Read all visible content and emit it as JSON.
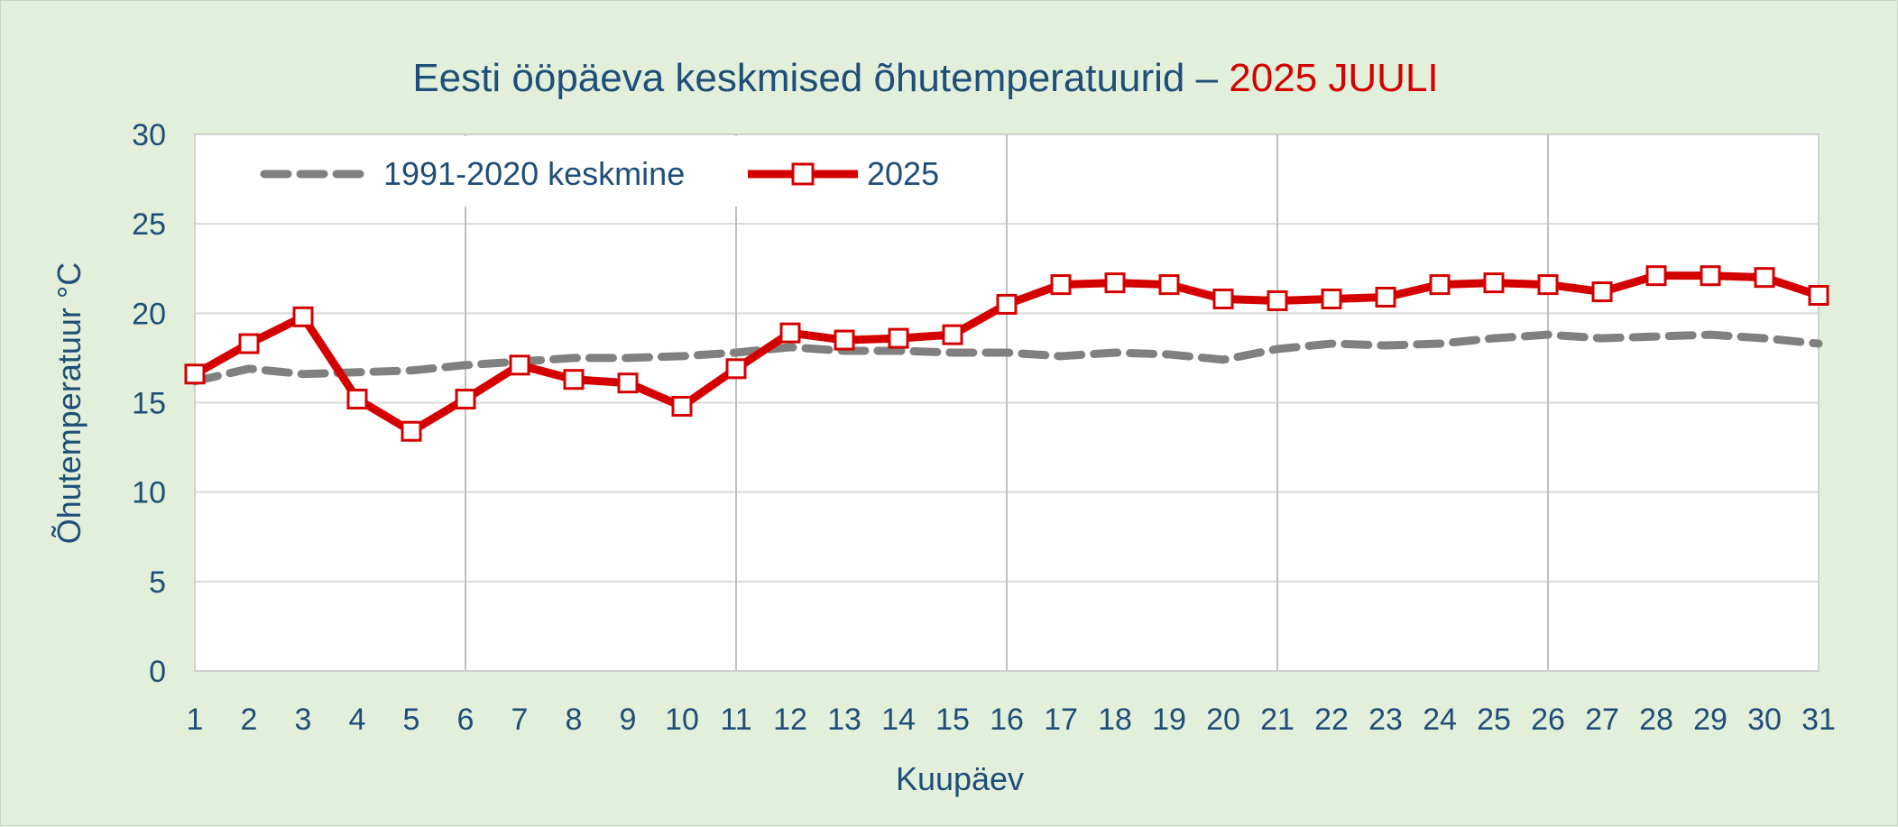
{
  "chart_data": {
    "type": "line",
    "title_main": "Eesti ööpäeva keskmised õhutemperatuurid – ",
    "title_highlight": "2025 JUULI",
    "xlabel": "Kuupäev",
    "ylabel": "Õhutemperatuur °C",
    "ylim": [
      0,
      30
    ],
    "yticks": [
      0,
      5,
      10,
      15,
      20,
      25,
      30
    ],
    "x": [
      1,
      2,
      3,
      4,
      5,
      6,
      7,
      8,
      9,
      10,
      11,
      12,
      13,
      14,
      15,
      16,
      17,
      18,
      19,
      20,
      21,
      22,
      23,
      24,
      25,
      26,
      27,
      28,
      29,
      30,
      31
    ],
    "grid": true,
    "legend_position": "top-left",
    "series": [
      {
        "name": "1991-2020 keskmine",
        "style": "dashed",
        "color": "#808080",
        "values": [
          16.2,
          16.9,
          16.6,
          16.7,
          16.8,
          17.1,
          17.3,
          17.5,
          17.5,
          17.6,
          17.8,
          18.1,
          17.9,
          17.9,
          17.8,
          17.8,
          17.6,
          17.8,
          17.7,
          17.4,
          18.0,
          18.3,
          18.2,
          18.3,
          18.6,
          18.8,
          18.6,
          18.7,
          18.8,
          18.6,
          18.3
        ]
      },
      {
        "name": "2025",
        "style": "solid-square-markers",
        "color": "#d40000",
        "values": [
          16.6,
          18.3,
          19.8,
          15.2,
          13.4,
          15.2,
          17.1,
          16.3,
          16.1,
          14.8,
          16.9,
          18.9,
          18.5,
          18.6,
          18.8,
          20.5,
          21.6,
          21.7,
          21.6,
          20.8,
          20.7,
          20.8,
          20.9,
          21.6,
          21.7,
          21.6,
          21.2,
          22.1,
          22.1,
          22.0,
          21.0
        ]
      }
    ]
  },
  "colors": {
    "background": "#e2efda",
    "plot_area": "#ffffff",
    "title": "#1f4e79",
    "title_highlight": "#d40000",
    "gridline": "#d9d9d9",
    "major_gridline": "#bfbfbf"
  }
}
